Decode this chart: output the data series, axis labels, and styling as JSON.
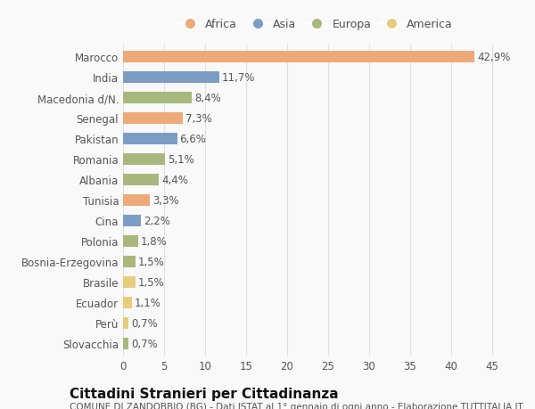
{
  "countries": [
    "Slovacchia",
    "Perù",
    "Ecuador",
    "Brasile",
    "Bosnia-Erzegovina",
    "Polonia",
    "Cina",
    "Tunisia",
    "Albania",
    "Romania",
    "Pakistan",
    "Senegal",
    "Macedonia d/N.",
    "India",
    "Marocco"
  ],
  "values": [
    0.7,
    0.7,
    1.1,
    1.5,
    1.5,
    1.8,
    2.2,
    3.3,
    4.4,
    5.1,
    6.6,
    7.3,
    8.4,
    11.7,
    42.9
  ],
  "labels": [
    "0,7%",
    "0,7%",
    "1,1%",
    "1,5%",
    "1,5%",
    "1,8%",
    "2,2%",
    "3,3%",
    "4,4%",
    "5,1%",
    "6,6%",
    "7,3%",
    "8,4%",
    "11,7%",
    "42,9%"
  ],
  "continents": [
    "Europa",
    "America",
    "America",
    "America",
    "Europa",
    "Europa",
    "Asia",
    "Africa",
    "Europa",
    "Europa",
    "Asia",
    "Africa",
    "Europa",
    "Asia",
    "Africa"
  ],
  "continent_colors": {
    "Africa": "#EDAA78",
    "Asia": "#7B9DC5",
    "Europa": "#A8B87C",
    "America": "#E8CC7E"
  },
  "legend_order": [
    "Africa",
    "Asia",
    "Europa",
    "America"
  ],
  "xlim": [
    0,
    47
  ],
  "xticks": [
    0,
    5,
    10,
    15,
    20,
    25,
    30,
    35,
    40,
    45
  ],
  "title": "Cittadini Stranieri per Cittadinanza",
  "subtitle": "COMUNE DI ZANDOBBIO (BG) - Dati ISTAT al 1° gennaio di ogni anno - Elaborazione TUTTITALIA.IT",
  "background_color": "#f9f9f9",
  "grid_color": "#e0e0e0",
  "text_color": "#555555",
  "bar_height": 0.55,
  "label_fontsize": 8.5,
  "tick_fontsize": 8.5,
  "title_fontsize": 11,
  "subtitle_fontsize": 7.5
}
